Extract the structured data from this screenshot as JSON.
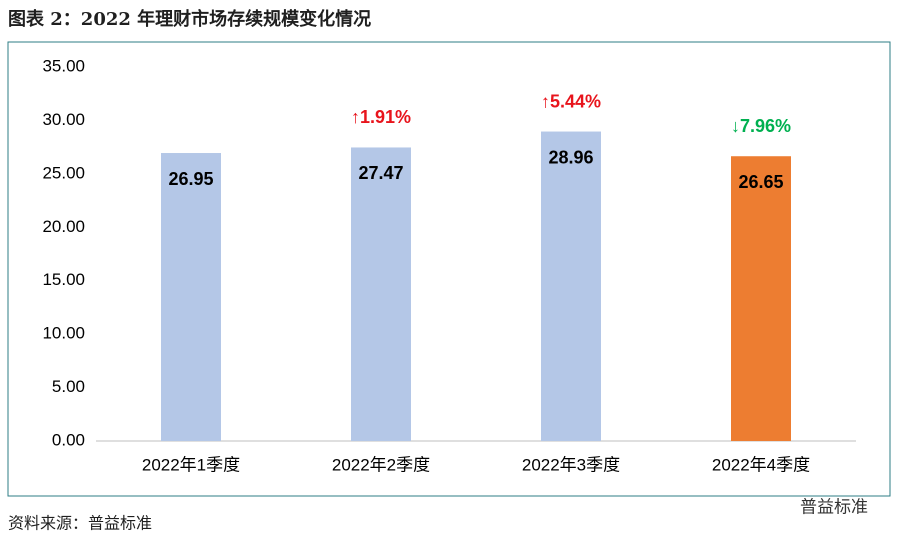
{
  "title": "图表 2：2022 年理财市场存续规模变化情况",
  "source": "资料来源：普益标准",
  "watermark": "普益标准",
  "chart_data": {
    "type": "bar",
    "categories": [
      "2022年1季度",
      "2022年2季度",
      "2022年3季度",
      "2022年4季度"
    ],
    "values": [
      26.95,
      27.47,
      28.96,
      26.65
    ],
    "colors": [
      "#b4c7e7",
      "#b4c7e7",
      "#b4c7e7",
      "#ed7d31"
    ],
    "change_labels": [
      null,
      "↑1.91%",
      "↑5.44%",
      "↓7.96%"
    ],
    "change_colors": [
      null,
      "#e8141c",
      "#e8141c",
      "#00b050"
    ],
    "ylim": [
      0,
      35
    ],
    "yticks": [
      {
        "value": 0,
        "label": "0.00"
      },
      {
        "value": 5,
        "label": "5.00"
      },
      {
        "value": 10,
        "label": "10.00"
      },
      {
        "value": 15,
        "label": "15.00"
      },
      {
        "value": 20,
        "label": "20.00"
      },
      {
        "value": 25,
        "label": "25.00"
      },
      {
        "value": 30,
        "label": "30.00"
      },
      {
        "value": 35,
        "label": "35.00"
      }
    ],
    "grid": false
  }
}
